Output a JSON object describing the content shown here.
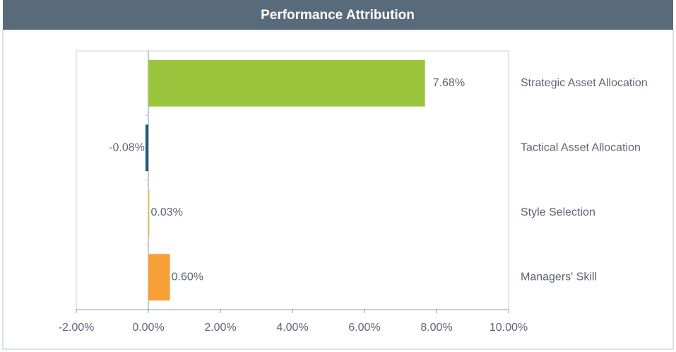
{
  "chart_data": {
    "type": "barh",
    "title": "Performance Attribution",
    "categories": [
      "Strategic Asset Allocation",
      "Tactical Asset Allocation",
      "Style Selection",
      "Managers' Skill"
    ],
    "values": [
      7.68,
      -0.08,
      0.03,
      0.6
    ],
    "value_labels": [
      "7.68%",
      "-0.08%",
      "0.03%",
      "0.60%"
    ],
    "colors": [
      "#9bc53d",
      "#1b5e7b",
      "#e6c34a",
      "#f7a038"
    ],
    "xlim": [
      -2,
      10
    ],
    "xticks": [
      {
        "value": -2,
        "label": "-2.00%"
      },
      {
        "value": 0,
        "label": "0.00%"
      },
      {
        "value": 2,
        "label": "2.00%"
      },
      {
        "value": 4,
        "label": "4.00%"
      },
      {
        "value": 6,
        "label": "6.00%"
      },
      {
        "value": 8,
        "label": "8.00%"
      },
      {
        "value": 10,
        "label": "10.00%"
      }
    ]
  }
}
